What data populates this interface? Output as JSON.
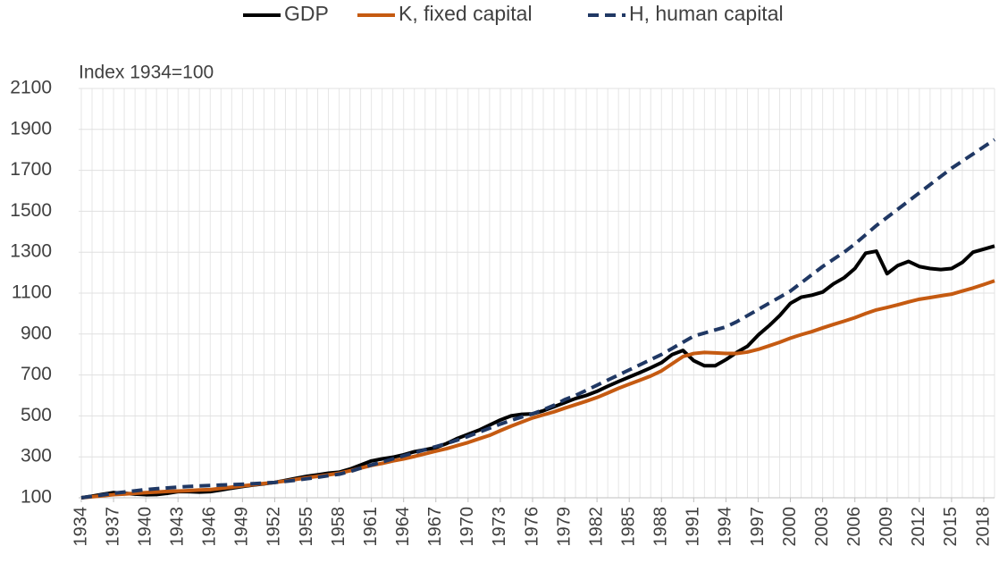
{
  "chart_data": {
    "type": "line",
    "axis_label": "Index 1934=100",
    "x": [
      1934,
      1935,
      1936,
      1937,
      1938,
      1939,
      1940,
      1941,
      1942,
      1943,
      1944,
      1945,
      1946,
      1947,
      1948,
      1949,
      1950,
      1951,
      1952,
      1953,
      1954,
      1955,
      1956,
      1957,
      1958,
      1959,
      1960,
      1961,
      1962,
      1963,
      1964,
      1965,
      1966,
      1967,
      1968,
      1969,
      1970,
      1971,
      1972,
      1973,
      1974,
      1975,
      1976,
      1977,
      1978,
      1979,
      1980,
      1981,
      1982,
      1983,
      1984,
      1985,
      1986,
      1987,
      1988,
      1989,
      1990,
      1991,
      1992,
      1993,
      1994,
      1995,
      1996,
      1997,
      1998,
      1999,
      2000,
      2001,
      2002,
      2003,
      2004,
      2005,
      2006,
      2007,
      2008,
      2009,
      2010,
      2011,
      2012,
      2013,
      2014,
      2015,
      2016,
      2017,
      2018,
      2019
    ],
    "series": [
      {
        "name": "GDP",
        "color": "#000000",
        "dash": false,
        "values": [
          100,
          108,
          117,
          125,
          122,
          118,
          115,
          116,
          122,
          130,
          130,
          128,
          130,
          138,
          147,
          155,
          162,
          168,
          175,
          185,
          195,
          205,
          212,
          220,
          225,
          240,
          260,
          280,
          290,
          298,
          310,
          325,
          335,
          345,
          365,
          390,
          410,
          430,
          455,
          480,
          500,
          508,
          510,
          525,
          545,
          565,
          585,
          600,
          620,
          645,
          668,
          690,
          712,
          735,
          760,
          800,
          820,
          770,
          745,
          745,
          775,
          810,
          840,
          895,
          940,
          990,
          1050,
          1080,
          1090,
          1105,
          1145,
          1175,
          1220,
          1295,
          1305,
          1195,
          1235,
          1255,
          1230,
          1220,
          1215,
          1220,
          1250,
          1300,
          1315,
          1330
        ]
      },
      {
        "name": "K, fixed capital",
        "color": "#c55a11",
        "dash": false,
        "values": [
          100,
          105,
          110,
          115,
          118,
          122,
          125,
          128,
          131,
          133,
          135,
          138,
          140,
          146,
          152,
          158,
          164,
          170,
          175,
          182,
          190,
          198,
          205,
          212,
          220,
          232,
          245,
          258,
          268,
          280,
          290,
          302,
          315,
          328,
          340,
          355,
          370,
          388,
          405,
          428,
          450,
          470,
          490,
          505,
          520,
          538,
          555,
          572,
          590,
          612,
          635,
          655,
          675,
          695,
          720,
          755,
          790,
          805,
          810,
          808,
          805,
          805,
          812,
          825,
          842,
          860,
          880,
          897,
          912,
          930,
          947,
          963,
          980,
          1000,
          1018,
          1030,
          1043,
          1057,
          1070,
          1078,
          1087,
          1095,
          1110,
          1125,
          1142,
          1160
        ]
      },
      {
        "name": "H, human capital",
        "color": "#203864",
        "dash": true,
        "values": [
          100,
          107,
          114,
          122,
          128,
          134,
          140,
          144,
          148,
          152,
          155,
          158,
          160,
          162,
          164,
          166,
          169,
          172,
          175,
          180,
          186,
          193,
          200,
          208,
          215,
          228,
          245,
          260,
          275,
          290,
          305,
          320,
          335,
          350,
          365,
          382,
          400,
          420,
          440,
          460,
          478,
          495,
          510,
          530,
          552,
          580,
          600,
          625,
          650,
          675,
          700,
          725,
          750,
          775,
          800,
          830,
          860,
          890,
          905,
          920,
          935,
          960,
          990,
          1020,
          1050,
          1080,
          1110,
          1150,
          1190,
          1230,
          1265,
          1300,
          1340,
          1385,
          1430,
          1470,
          1510,
          1550,
          1590,
          1630,
          1670,
          1710,
          1745,
          1780,
          1815,
          1850
        ]
      }
    ],
    "xlim": [
      1934,
      2019
    ],
    "xticks": [
      1934,
      1937,
      1940,
      1943,
      1946,
      1949,
      1952,
      1955,
      1958,
      1961,
      1964,
      1967,
      1970,
      1973,
      1976,
      1979,
      1982,
      1985,
      1988,
      1991,
      1994,
      1997,
      2000,
      2003,
      2006,
      2009,
      2012,
      2015,
      2018
    ],
    "ylim": [
      100,
      2100
    ],
    "yticks": [
      100,
      300,
      500,
      700,
      900,
      1100,
      1300,
      1500,
      1700,
      1900,
      2100
    ],
    "grid": true,
    "legend": "top"
  }
}
